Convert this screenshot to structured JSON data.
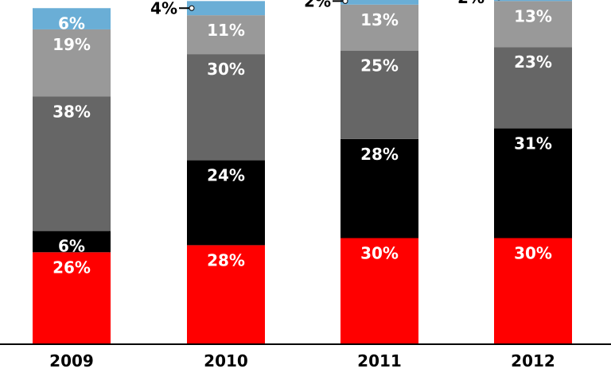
{
  "chart_data": {
    "type": "bar",
    "stacked": true,
    "categories": [
      "2009",
      "2010",
      "2011",
      "2012"
    ],
    "ylim": [
      0,
      100
    ],
    "grid": false,
    "series": [
      {
        "color": "#ff0000",
        "values": [
          26,
          28,
          30,
          30
        ],
        "labels": [
          "26%",
          "28%",
          "30%",
          "30%"
        ]
      },
      {
        "color": "#000000",
        "values": [
          6,
          24,
          28,
          31
        ],
        "labels": [
          "6%",
          "24%",
          "28%",
          "31%"
        ]
      },
      {
        "color": "#666666",
        "values": [
          38,
          30,
          25,
          23
        ],
        "labels": [
          "38%",
          "30%",
          "25%",
          "23%"
        ]
      },
      {
        "color": "#999999",
        "values": [
          19,
          11,
          13,
          13
        ],
        "labels": [
          "19%",
          "11%",
          "13%",
          "13%"
        ]
      },
      {
        "color": "#6aaed6",
        "values": [
          6,
          4,
          2,
          2
        ],
        "labels": [
          "6%",
          "4%",
          "2%",
          "2%"
        ]
      }
    ]
  }
}
